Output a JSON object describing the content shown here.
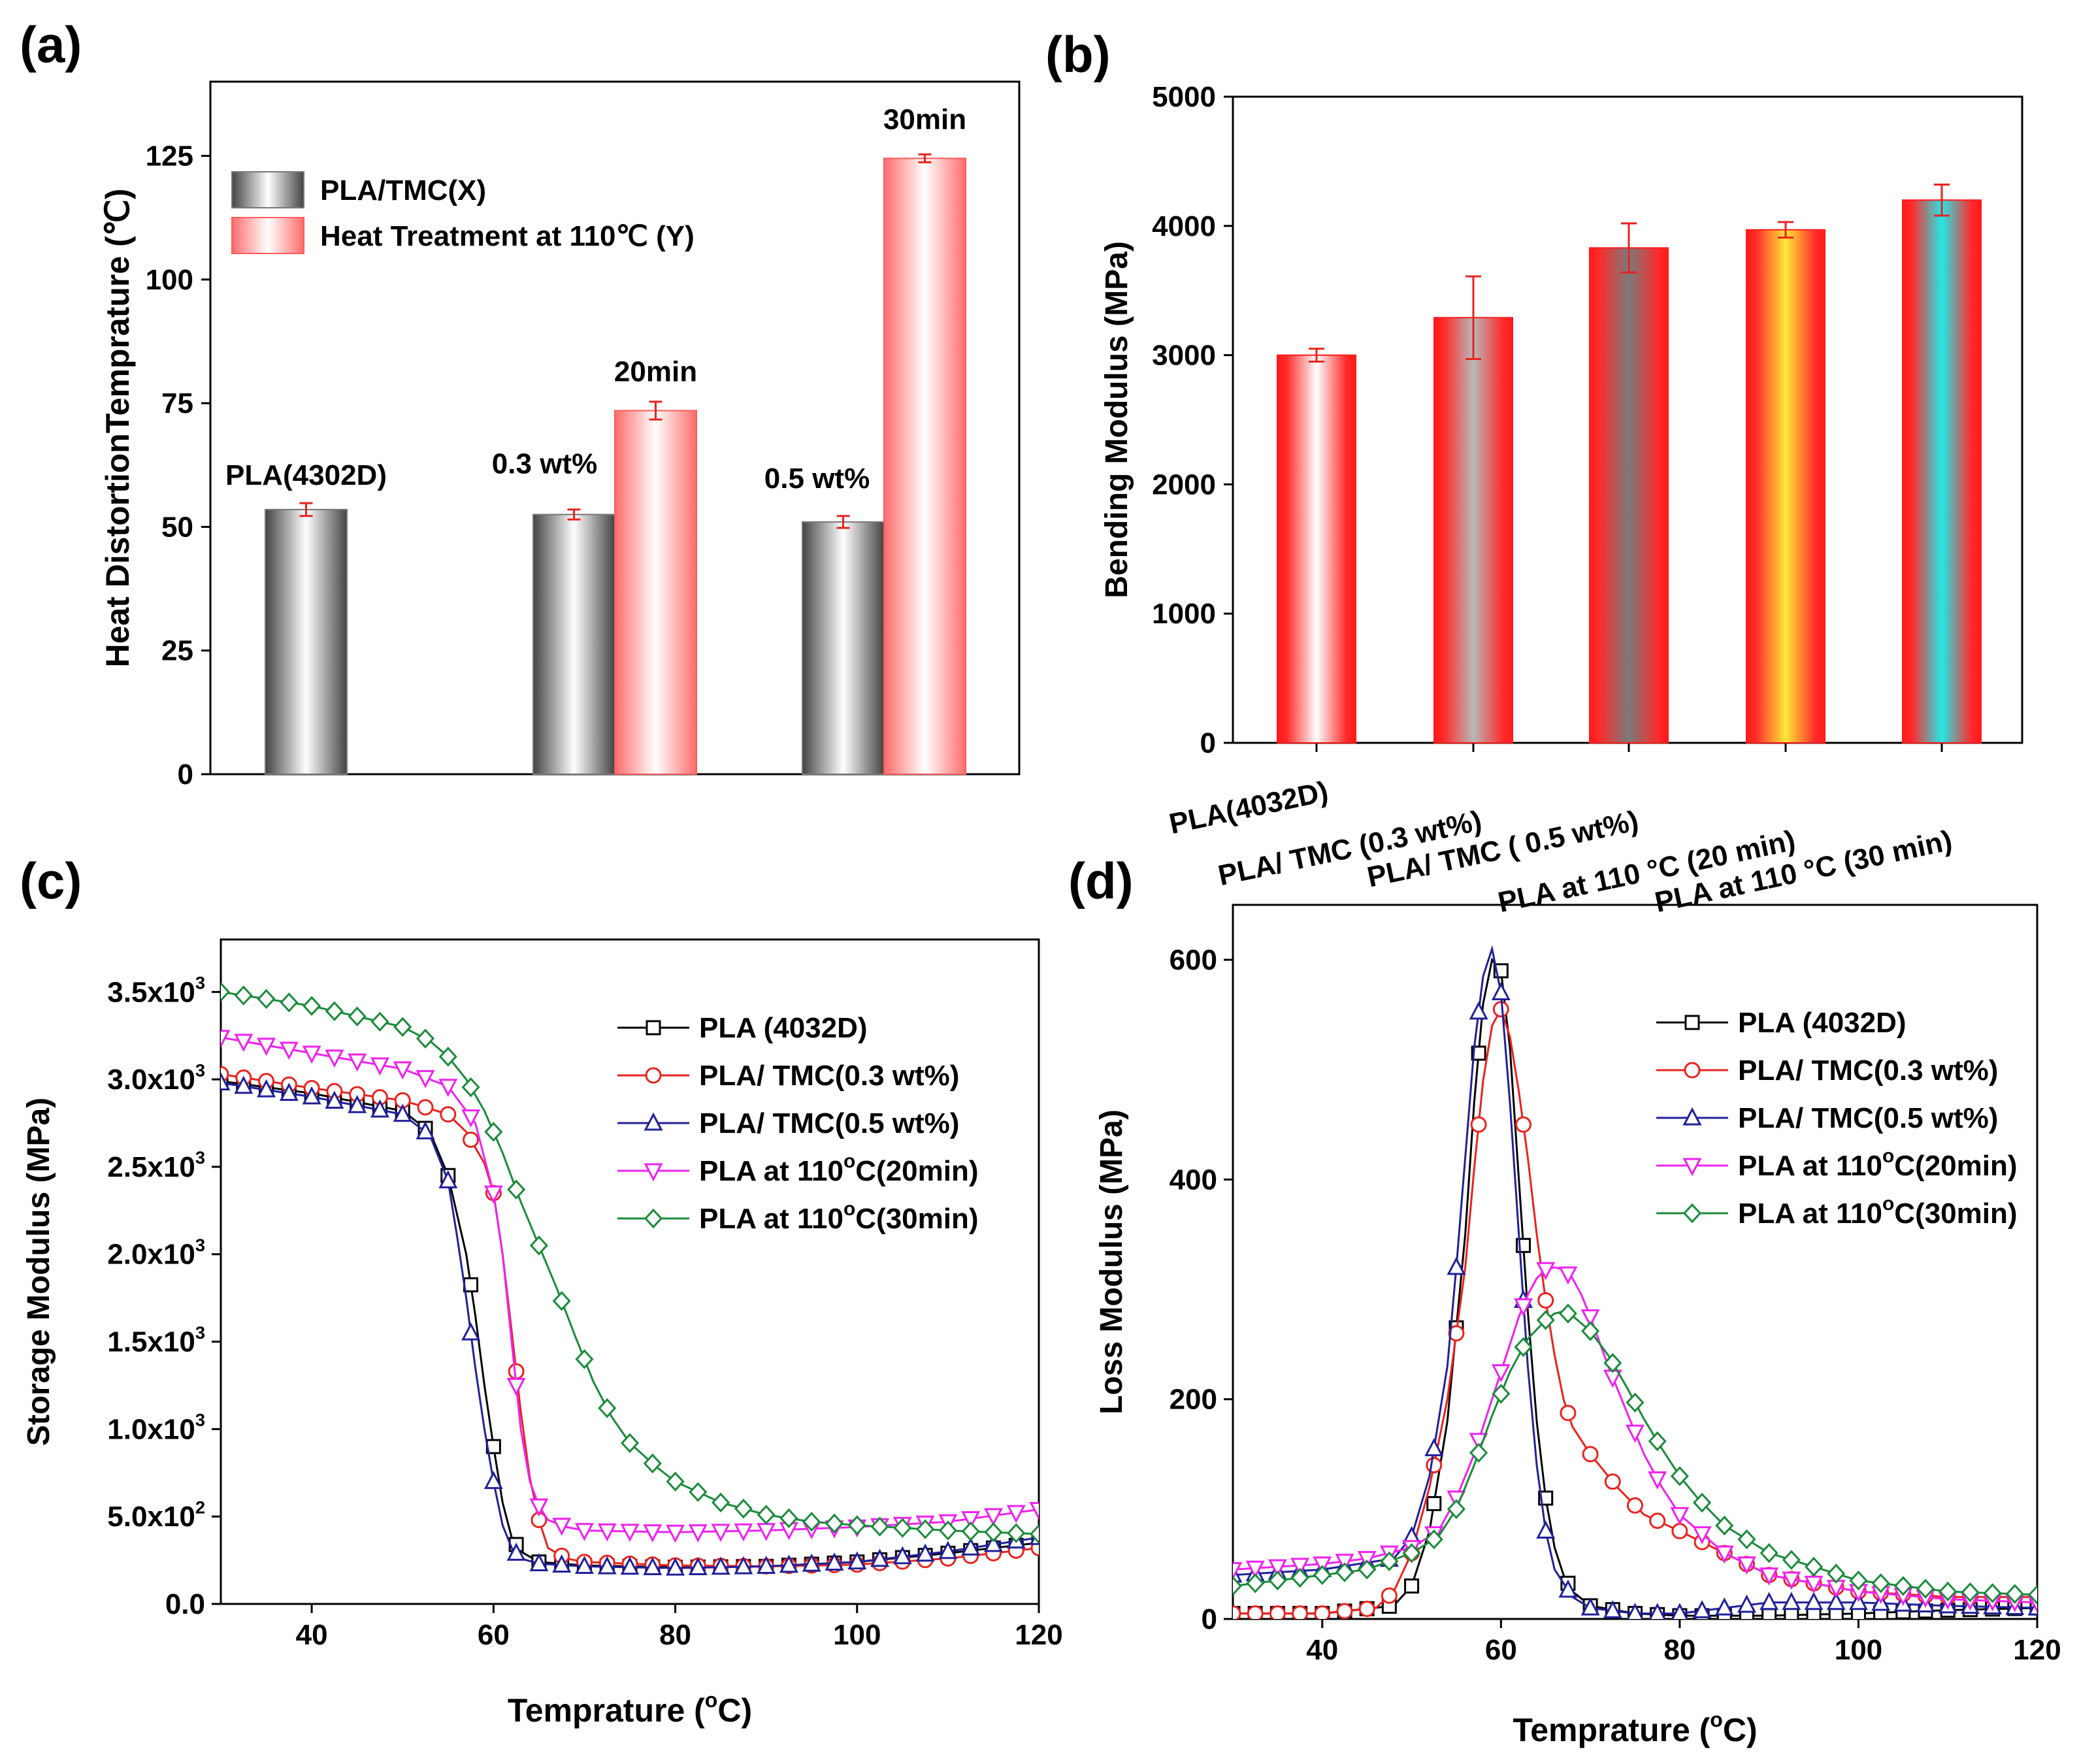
{
  "figure": {
    "panel_labels": [
      "(a)",
      "(b)",
      "(c)",
      "(d)"
    ]
  },
  "chart_data": [
    {
      "type": "bar",
      "panel": "(a)",
      "title": "",
      "xlabel": "",
      "ylabel": "Heat DistortionTemprature (℃)",
      "ylim": [
        0,
        140
      ],
      "yticks": [
        0,
        25,
        50,
        75,
        100,
        125
      ],
      "ytick_labels": [
        "0",
        "25",
        "50",
        "75",
        "100",
        "125"
      ],
      "categories": [
        "PLA(4302D)",
        "0.3 wt%",
        "0.5 wt%"
      ],
      "series": [
        {
          "name": "PLA/TMC(X)",
          "values": [
            53.5,
            52.5,
            51
          ],
          "errors": [
            1.3,
            1.0,
            1.2
          ],
          "color": "#808080"
        },
        {
          "name": "Heat Treatment at 110℃ (Y)",
          "values": [
            null,
            73.5,
            124.5
          ],
          "errors": [
            null,
            1.8,
            0.8
          ],
          "color": "#ff5a5a"
        }
      ],
      "bar_labels": [
        {
          "text": "PLA(4302D)",
          "series": 0,
          "index": 0
        },
        {
          "text": "0.3 wt%",
          "series": 0,
          "index": 1
        },
        {
          "text": "0.5 wt%",
          "series": 0,
          "index": 2
        },
        {
          "text": "20min",
          "series": 1,
          "index": 1
        },
        {
          "text": "30min",
          "series": 1,
          "index": 2
        }
      ],
      "legend": {
        "placement": "top-left",
        "entries": [
          "PLA/TMC(X)",
          "Heat Treatment at 110℃ (Y)"
        ]
      }
    },
    {
      "type": "bar",
      "panel": "(b)",
      "title": "",
      "xlabel": "",
      "ylabel": "Bending Modulus (MPa)",
      "ylim": [
        0,
        5000
      ],
      "yticks": [
        0,
        1000,
        2000,
        3000,
        4000,
        5000
      ],
      "ytick_labels": [
        "0",
        "1000",
        "2000",
        "3000",
        "4000",
        "5000"
      ],
      "categories": [
        "PLA(4032D)",
        "PLA/ TMC (0.3 wt%)",
        "PLA/ TMC ( 0.5 wt%)",
        "PLA at 110 °C (20 min)",
        "PLA at 110 °C (30 min)"
      ],
      "values": [
        3000,
        3290,
        3830,
        3970,
        4200
      ],
      "errors": [
        50,
        320,
        190,
        60,
        120
      ],
      "colors": [
        "#ffffff",
        "#b8b8b8",
        "#7a7a7a",
        "#ffe838",
        "#22e8e8"
      ]
    },
    {
      "type": "line",
      "panel": "(c)",
      "title": "",
      "xlabel": "Temprature (°C)",
      "ylabel": "Storage Modulus (MPa)",
      "xlim": [
        30,
        120
      ],
      "ylim": [
        0,
        3800
      ],
      "xticks": [
        40,
        60,
        80,
        100,
        120
      ],
      "yticks": [
        0,
        500,
        1000,
        1500,
        2000,
        2500,
        3000,
        3500
      ],
      "ytick_labels": [
        "0.0",
        "5.0x10²",
        "1.0x10³",
        "1.5x10³",
        "2.0x10³",
        "2.5x10³",
        "3.0x10³",
        "3.5x10³"
      ],
      "legend": {
        "placement": "top-right"
      },
      "series": [
        {
          "name": "PLA (4032D)",
          "color": "#000000",
          "marker": "square",
          "x": [
            30,
            40,
            50,
            53,
            55,
            57,
            58,
            59,
            60,
            61,
            62,
            63,
            65,
            70,
            80,
            90,
            100,
            110,
            120
          ],
          "y": [
            2990,
            2920,
            2820,
            2700,
            2450,
            2000,
            1650,
            1250,
            900,
            580,
            380,
            300,
            240,
            220,
            210,
            215,
            240,
            290,
            350
          ]
        },
        {
          "name": "PLA/ TMC(0.3 wt%)",
          "color": "#e8231f",
          "marker": "circle",
          "x": [
            30,
            40,
            50,
            55,
            57,
            59,
            60,
            61,
            62,
            63,
            64,
            65,
            66,
            68,
            70,
            80,
            90,
            100,
            110,
            120
          ],
          "y": [
            3030,
            2950,
            2880,
            2800,
            2700,
            2520,
            2350,
            2000,
            1560,
            1100,
            720,
            480,
            320,
            260,
            240,
            220,
            215,
            225,
            260,
            320
          ]
        },
        {
          "name": "PLA/ TMC(0.5 wt%)",
          "color": "#20209a",
          "marker": "triangle-up",
          "x": [
            30,
            40,
            50,
            53,
            55,
            56,
            57,
            58,
            59,
            60,
            61,
            62,
            63,
            65,
            70,
            80,
            90,
            100,
            110,
            120
          ],
          "y": [
            2980,
            2900,
            2800,
            2680,
            2420,
            2100,
            1750,
            1350,
            1000,
            700,
            450,
            320,
            260,
            230,
            215,
            205,
            215,
            240,
            300,
            380
          ]
        },
        {
          "name": "PLA at 110°C(20min)",
          "color": "#ee22ee",
          "marker": "triangle-down",
          "x": [
            30,
            40,
            50,
            55,
            58,
            60,
            61,
            62,
            63,
            64,
            65,
            66,
            68,
            70,
            80,
            90,
            100,
            110,
            120
          ],
          "y": [
            3240,
            3150,
            3060,
            2960,
            2750,
            2350,
            2000,
            1500,
            1000,
            700,
            560,
            480,
            440,
            420,
            410,
            420,
            440,
            470,
            540
          ]
        },
        {
          "name": "PLA at 110°C(30min)",
          "color": "#1a8a3a",
          "marker": "diamond",
          "x": [
            30,
            35,
            40,
            45,
            50,
            53,
            55,
            57,
            59,
            61,
            63,
            65,
            67,
            69,
            71,
            73,
            75,
            78,
            80,
            85,
            90,
            95,
            100,
            110,
            120
          ],
          "y": [
            3500,
            3460,
            3420,
            3360,
            3300,
            3220,
            3130,
            3000,
            2820,
            2580,
            2300,
            2050,
            1800,
            1530,
            1270,
            1070,
            920,
            780,
            700,
            580,
            510,
            470,
            450,
            420,
            400
          ]
        }
      ]
    },
    {
      "type": "line",
      "panel": "(d)",
      "title": "",
      "xlabel": "Temprature (°C)",
      "ylabel": "Loss Modulus (MPa)",
      "xlim": [
        30,
        120
      ],
      "ylim": [
        0,
        650
      ],
      "xticks": [
        40,
        60,
        80,
        100,
        120
      ],
      "yticks": [
        0,
        200,
        400,
        600
      ],
      "ytick_labels": [
        "0",
        "200",
        "400",
        "600"
      ],
      "legend": {
        "placement": "top-right"
      },
      "series": [
        {
          "name": "PLA (4032D)",
          "color": "#000000",
          "marker": "square",
          "x": [
            30,
            40,
            48,
            50,
            52,
            54,
            56,
            57,
            58,
            59,
            60,
            61,
            62,
            63,
            64,
            65,
            66,
            67,
            68,
            70,
            75,
            80,
            90,
            100,
            110,
            120
          ],
          "y": [
            5,
            5,
            12,
            30,
            80,
            180,
            350,
            470,
            560,
            600,
            590,
            520,
            400,
            280,
            180,
            110,
            65,
            40,
            25,
            12,
            5,
            3,
            3,
            5,
            8,
            10
          ]
        },
        {
          "name": "PLA/ TMC(0.3 wt%)",
          "color": "#e8231f",
          "marker": "circle",
          "x": [
            30,
            40,
            46,
            48,
            50,
            52,
            54,
            56,
            57,
            58,
            59,
            60,
            61,
            62,
            63,
            64,
            65,
            66,
            67,
            68,
            70,
            73,
            76,
            80,
            85,
            90,
            100,
            110,
            120
          ],
          "y": [
            5,
            5,
            10,
            25,
            60,
            120,
            200,
            320,
            410,
            490,
            540,
            555,
            530,
            480,
            420,
            350,
            290,
            240,
            200,
            175,
            150,
            120,
            95,
            80,
            60,
            40,
            25,
            20,
            20
          ]
        },
        {
          "name": "PLA/ TMC(0.5 wt%)",
          "color": "#20209a",
          "marker": "triangle-up",
          "x": [
            30,
            40,
            48,
            50,
            52,
            54,
            55,
            56,
            57,
            58,
            59,
            60,
            61,
            62,
            63,
            64,
            65,
            66,
            68,
            70,
            75,
            80,
            90,
            100,
            110,
            120
          ],
          "y": [
            40,
            45,
            55,
            75,
            130,
            230,
            320,
            420,
            520,
            585,
            610,
            570,
            470,
            350,
            230,
            140,
            80,
            45,
            20,
            10,
            5,
            5,
            15,
            15,
            12,
            10
          ]
        },
        {
          "name": "PLA at 110°C(20min)",
          "color": "#ee22ee",
          "marker": "triangle-down",
          "x": [
            30,
            40,
            45,
            50,
            53,
            55,
            57,
            59,
            61,
            62,
            63,
            64,
            65,
            66,
            67,
            68,
            69,
            70,
            72,
            74,
            76,
            78,
            80,
            85,
            90,
            100,
            110,
            120
          ],
          "y": [
            45,
            50,
            55,
            65,
            80,
            110,
            150,
            200,
            250,
            275,
            295,
            310,
            318,
            320,
            318,
            310,
            295,
            275,
            230,
            190,
            150,
            120,
            95,
            60,
            40,
            25,
            18,
            15
          ]
        },
        {
          "name": "PLA at 110°C(30min)",
          "color": "#1a8a3a",
          "marker": "diamond",
          "x": [
            30,
            40,
            45,
            50,
            53,
            55,
            57,
            59,
            61,
            63,
            65,
            66,
            67,
            68,
            70,
            72,
            74,
            76,
            78,
            80,
            82,
            85,
            90,
            100,
            110,
            120
          ],
          "y": [
            30,
            40,
            45,
            60,
            75,
            100,
            140,
            185,
            225,
            255,
            272,
            278,
            280,
            276,
            262,
            240,
            212,
            182,
            155,
            130,
            110,
            85,
            60,
            35,
            25,
            22
          ]
        }
      ]
    }
  ]
}
